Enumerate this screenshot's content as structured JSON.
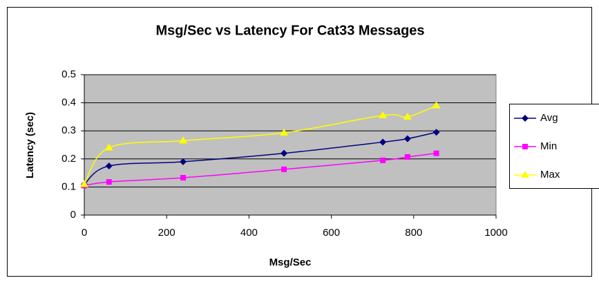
{
  "chart_data": {
    "type": "line",
    "title": "Msg/Sec vs Latency For Cat33 Messages",
    "x_label": "Msg/Sec",
    "y_label": "Latency (sec)",
    "x": [
      0,
      60,
      240,
      485,
      725,
      785,
      855
    ],
    "series": [
      {
        "name": "Avg",
        "color": "#000080",
        "marker": "diamond",
        "values": [
          0.11,
          0.175,
          0.19,
          0.22,
          0.26,
          0.272,
          0.295
        ]
      },
      {
        "name": "Min",
        "color": "#ff00ff",
        "marker": "square",
        "values": [
          0.105,
          0.118,
          0.133,
          0.163,
          0.195,
          0.207,
          0.22
        ]
      },
      {
        "name": "Max",
        "color": "#ffff00",
        "marker": "triangle",
        "values": [
          0.11,
          0.24,
          0.265,
          0.293,
          0.355,
          0.35,
          0.39
        ]
      }
    ],
    "xlim": [
      0,
      1000
    ],
    "xticks": [
      0,
      200,
      400,
      600,
      800,
      1000
    ],
    "ylim": [
      0,
      0.5
    ],
    "yticks": [
      0,
      0.1,
      0.2,
      0.3,
      0.4,
      0.5
    ],
    "grid": true,
    "smooth": true,
    "legend": "right"
  }
}
